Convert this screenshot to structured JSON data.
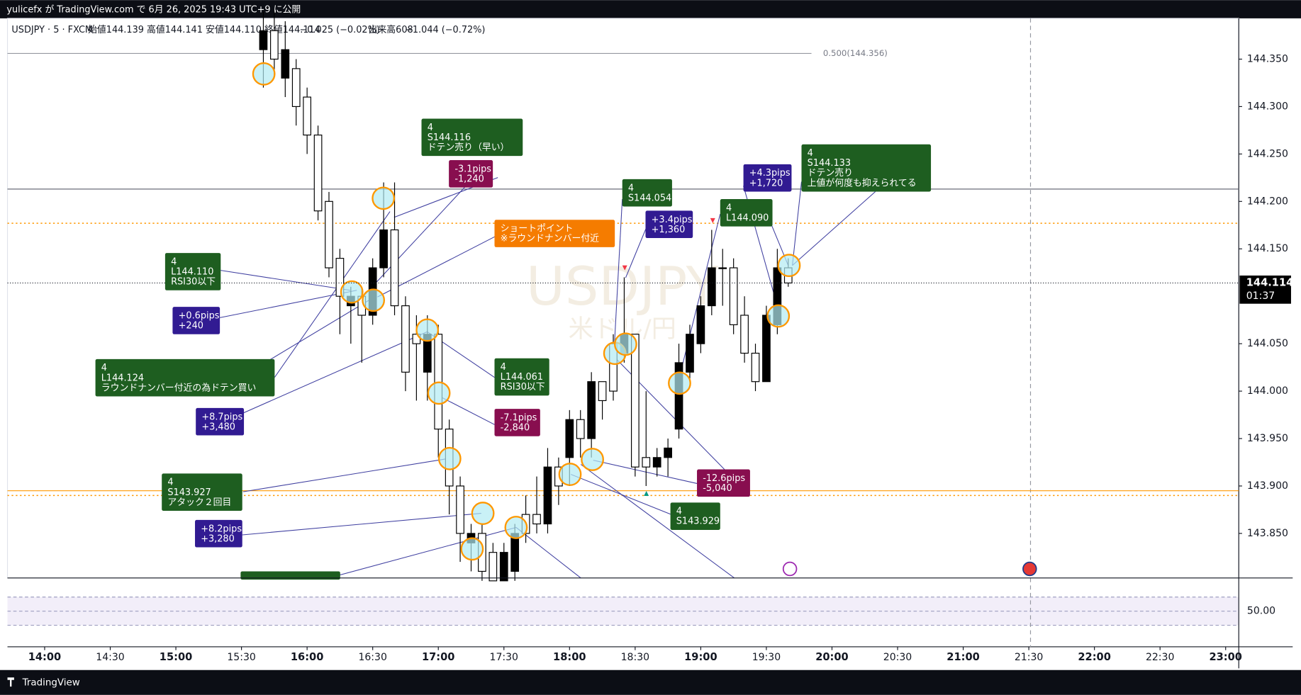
{
  "header": {
    "published": "yulicefx が TradingView.com で 6月 26, 2025 19:43 UTC+9 に公開",
    "symbol": "USDJPY · 5 · FXCM",
    "ohlc": "始値144.139 高値144.141 安値144.110 終値144.114",
    "change": "−0.025 (−0.02%)",
    "volume": "出来高608",
    "volume_change": "−1.044 (−0.72%)"
  },
  "watermark": {
    "symbol": "USDJPY",
    "name": "米ドル/円"
  },
  "footer": {
    "brand": "TradingView"
  },
  "chart_data": {
    "type": "candlestick",
    "x": [
      "15:40",
      "15:45",
      "15:50",
      "15:55",
      "16:00",
      "16:05",
      "16:10",
      "16:15",
      "16:20",
      "16:25",
      "16:30",
      "16:35",
      "16:40",
      "16:45",
      "16:50",
      "16:55",
      "17:00",
      "17:05",
      "17:10",
      "17:15",
      "17:20",
      "17:25",
      "17:30",
      "17:35",
      "17:40",
      "17:45",
      "17:50",
      "17:55",
      "18:00",
      "18:05",
      "18:10",
      "18:15",
      "18:20",
      "18:25",
      "18:30",
      "18:35",
      "18:40",
      "18:45",
      "18:50",
      "18:55",
      "19:00",
      "19:05",
      "19:10",
      "19:15",
      "19:20",
      "19:25",
      "19:30",
      "19:35",
      "19:40"
    ],
    "open": [
      144.36,
      144.38,
      144.33,
      144.34,
      144.31,
      144.27,
      144.2,
      144.14,
      144.09,
      144.1,
      144.08,
      144.13,
      144.17,
      144.09,
      144.06,
      144.02,
      144.06,
      143.96,
      143.9,
      143.84,
      143.85,
      143.83,
      143.8,
      143.81,
      143.87,
      143.87,
      143.86,
      143.92,
      143.93,
      143.97,
      143.95,
      144.01,
      144.05,
      144.04,
      144.06,
      143.93,
      143.92,
      143.93,
      143.96,
      144.02,
      144.05,
      144.09,
      144.13,
      144.13,
      144.08,
      144.04,
      144.01,
      144.07,
      144.13
    ],
    "high": [
      144.4,
      144.4,
      144.39,
      144.35,
      144.32,
      144.28,
      144.21,
      144.15,
      144.11,
      144.11,
      144.14,
      144.22,
      144.22,
      144.1,
      144.08,
      144.08,
      144.07,
      143.97,
      143.91,
      143.86,
      143.86,
      143.84,
      143.84,
      143.86,
      143.89,
      143.91,
      143.94,
      143.93,
      143.98,
      143.98,
      144.02,
      144.01,
      144.06,
      144.12,
      144.06,
      144.0,
      143.94,
      143.95,
      144.05,
      144.07,
      144.1,
      144.17,
      144.15,
      144.14,
      144.1,
      144.05,
      144.09,
      144.15,
      144.14
    ],
    "low": [
      144.32,
      144.33,
      144.31,
      144.28,
      144.25,
      144.18,
      144.12,
      144.06,
      144.05,
      144.03,
      144.07,
      144.12,
      144.08,
      144.0,
      143.99,
      143.99,
      143.93,
      143.87,
      143.82,
      143.81,
      143.8,
      143.8,
      143.8,
      143.8,
      143.84,
      143.85,
      143.85,
      143.88,
      143.9,
      143.93,
      143.93,
      143.97,
      143.99,
      144.03,
      143.91,
      143.9,
      143.91,
      143.91,
      143.95,
      144.01,
      144.04,
      144.08,
      144.09,
      144.06,
      144.03,
      144.0,
      144.01,
      144.06,
      144.11
    ],
    "close": [
      144.38,
      144.35,
      144.36,
      144.3,
      144.27,
      144.19,
      144.13,
      144.1,
      144.1,
      144.08,
      144.13,
      144.17,
      144.09,
      144.02,
      144.05,
      144.06,
      143.96,
      143.9,
      143.85,
      143.85,
      143.81,
      143.8,
      143.83,
      143.85,
      143.85,
      143.86,
      143.92,
      143.9,
      143.97,
      143.95,
      144.01,
      143.99,
      144.0,
      144.06,
      143.92,
      143.92,
      143.93,
      143.94,
      144.03,
      144.06,
      144.09,
      144.13,
      144.13,
      144.07,
      144.04,
      144.01,
      144.08,
      144.13,
      144.114
    ],
    "up_color": "#000000",
    "down_color": "#ffffff",
    "wick_color": "#000000",
    "ylim": [
      143.803,
      144.393
    ],
    "yticks": [
      {
        "value": 144.35,
        "label": "144.350"
      },
      {
        "value": 144.3,
        "label": "144.300"
      },
      {
        "value": 144.25,
        "label": "144.250"
      },
      {
        "value": 144.2,
        "label": "144.200"
      },
      {
        "value": 144.15,
        "label": "144.150"
      },
      {
        "value": 144.05,
        "label": "144.050"
      },
      {
        "value": 144,
        "label": "144.000"
      },
      {
        "value": 143.95,
        "label": "143.950"
      },
      {
        "value": 143.9,
        "label": "143.900"
      },
      {
        "value": 143.85,
        "label": "143.850"
      }
    ],
    "xlim": [
      "13:43",
      "23:06"
    ],
    "xticks": [
      "14:00",
      "14:30",
      "15:00",
      "15:30",
      "16:00",
      "16:30",
      "17:00",
      "17:30",
      "18:00",
      "18:30",
      "19:00",
      "19:30",
      "20:00",
      "20:30",
      "21:00",
      "21:30",
      "22:00",
      "22:30",
      "23:00"
    ],
    "last_price": {
      "value": 144.114,
      "label": "144.114"
    },
    "countdown": "01:37",
    "hlines": [
      {
        "value": 144.356,
        "label": "0.500(144.356)",
        "color": "#9598a1"
      },
      {
        "value": 144.213,
        "color": "#6a6d78"
      },
      {
        "value": 144.177,
        "color": "#ff9800",
        "dashed": true
      },
      {
        "value": 143.895,
        "color": "#ff9800"
      },
      {
        "value": 143.89,
        "color": "#ff9800",
        "dashed": true
      }
    ],
    "rsi": {
      "yticks": [
        {
          "value": 50,
          "label": "50.00"
        }
      ],
      "ylim": [
        0,
        100
      ]
    },
    "annotations": [
      {
        "lines": [
          "4",
          "S144.116",
          "ドテン売り（早い）"
        ],
        "color": "#1e5e20"
      },
      {
        "lines": [
          "-3.1pips",
          "-1,240"
        ],
        "color": "#880e4f"
      },
      {
        "lines": [
          "ショートポイント",
          "※ラウンドナンバー付近"
        ],
        "color": "#f57c00"
      },
      {
        "lines": [
          "4",
          "L144.110",
          "RSI30以下"
        ],
        "color": "#1e5e20"
      },
      {
        "lines": [
          "+0.6pips",
          "+240"
        ],
        "color": "#311b92"
      },
      {
        "lines": [
          "4",
          "L144.124",
          "ラウンドナンバー付近の為ドテン買い"
        ],
        "color": "#1e5e20"
      },
      {
        "lines": [
          "+8.7pips",
          "+3,480"
        ],
        "color": "#311b92"
      },
      {
        "lines": [
          "4",
          "S143.927",
          "アタック２回目"
        ],
        "color": "#1e5e20"
      },
      {
        "lines": [
          "+8.2pips",
          "+3,280"
        ],
        "color": "#311b92"
      },
      {
        "lines": [
          "4",
          "L144.061",
          "RSI30以下"
        ],
        "color": "#1e5e20"
      },
      {
        "lines": [
          "-7.1pips",
          "-2,840"
        ],
        "color": "#880e4f"
      },
      {
        "lines": [
          "4",
          "S144.054"
        ],
        "color": "#1e5e20"
      },
      {
        "lines": [
          "+3.4pips",
          "+1,360"
        ],
        "color": "#311b92"
      },
      {
        "lines": [
          "4",
          "L144.090"
        ],
        "color": "#1e5e20"
      },
      {
        "lines": [
          "+4.3pips",
          "+1,720"
        ],
        "color": "#311b92"
      },
      {
        "lines": [
          "4",
          "S144.133",
          "ドテン売り",
          "上値が何度も抑えられてる"
        ],
        "color": "#1e5e20"
      },
      {
        "lines": [
          "-12.6pips",
          "-5,040"
        ],
        "color": "#880e4f"
      },
      {
        "lines": [
          "4",
          "S143.929"
        ],
        "color": "#1e5e20"
      }
    ]
  }
}
